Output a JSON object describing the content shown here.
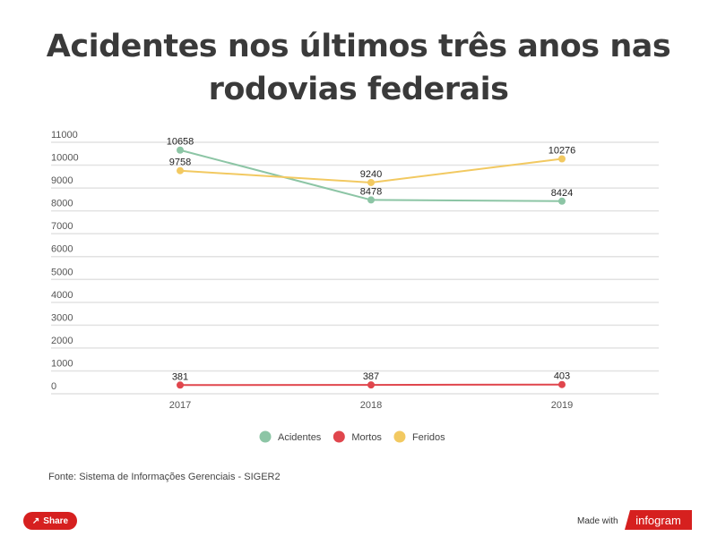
{
  "chart_data": {
    "type": "line",
    "title": "Acidentes nos últimos três anos nas rodovias federais",
    "categories": [
      "2017",
      "2018",
      "2019"
    ],
    "ylim": [
      0,
      11000
    ],
    "yticks": [
      0,
      1000,
      2000,
      3000,
      4000,
      5000,
      6000,
      7000,
      8000,
      9000,
      10000,
      11000
    ],
    "grid": true,
    "legend_placement": "bottom",
    "series": [
      {
        "name": "Acidentes",
        "values": [
          10658,
          8478,
          8424
        ],
        "color": "#8cc5a5"
      },
      {
        "name": "Mortos",
        "values": [
          381,
          387,
          403
        ],
        "color": "#e0464d"
      },
      {
        "name": "Feridos",
        "values": [
          9758,
          9240,
          10276
        ],
        "color": "#f2c961"
      }
    ]
  },
  "source": "Fonte: Sistema de Informações Gerenciais - SIGER2",
  "footer": {
    "share": "Share",
    "made_with": "Made with",
    "brand": "infogram",
    "share_icon": "share-icon"
  }
}
